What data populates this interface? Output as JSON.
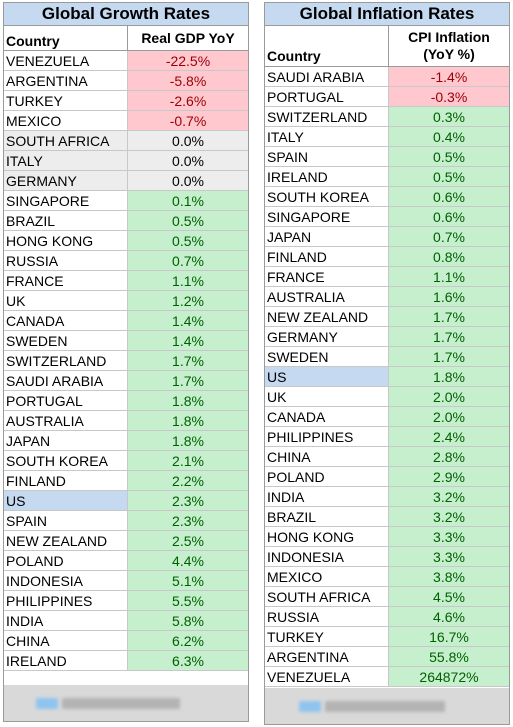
{
  "growth": {
    "title": "Global Growth Rates",
    "col_country": "Country",
    "col_value": "Real GDP YoY",
    "rows": [
      {
        "country": "VENEZUELA",
        "value": "-22.5%",
        "status": "neg"
      },
      {
        "country": "ARGENTINA",
        "value": "-5.8%",
        "status": "neg"
      },
      {
        "country": "TURKEY",
        "value": "-2.6%",
        "status": "neg"
      },
      {
        "country": "MEXICO",
        "value": "-0.7%",
        "status": "neg"
      },
      {
        "country": "SOUTH AFRICA",
        "value": "0.0%",
        "status": "zero"
      },
      {
        "country": "ITALY",
        "value": "0.0%",
        "status": "zero"
      },
      {
        "country": "GERMANY",
        "value": "0.0%",
        "status": "zero"
      },
      {
        "country": "SINGAPORE",
        "value": "0.1%",
        "status": "pos"
      },
      {
        "country": "BRAZIL",
        "value": "0.5%",
        "status": "pos"
      },
      {
        "country": "HONG KONG",
        "value": "0.5%",
        "status": "pos"
      },
      {
        "country": "RUSSIA",
        "value": "0.7%",
        "status": "pos"
      },
      {
        "country": "FRANCE",
        "value": "1.1%",
        "status": "pos"
      },
      {
        "country": "UK",
        "value": "1.2%",
        "status": "pos"
      },
      {
        "country": "CANADA",
        "value": "1.4%",
        "status": "pos"
      },
      {
        "country": "SWEDEN",
        "value": "1.4%",
        "status": "pos"
      },
      {
        "country": "SWITZERLAND",
        "value": "1.7%",
        "status": "pos"
      },
      {
        "country": "SAUDI ARABIA",
        "value": "1.7%",
        "status": "pos"
      },
      {
        "country": "PORTUGAL",
        "value": "1.8%",
        "status": "pos"
      },
      {
        "country": "AUSTRALIA",
        "value": "1.8%",
        "status": "pos"
      },
      {
        "country": "JAPAN",
        "value": "1.8%",
        "status": "pos"
      },
      {
        "country": "SOUTH KOREA",
        "value": "2.1%",
        "status": "pos"
      },
      {
        "country": "FINLAND",
        "value": "2.2%",
        "status": "pos"
      },
      {
        "country": "US",
        "value": "2.3%",
        "status": "pos us"
      },
      {
        "country": "SPAIN",
        "value": "2.3%",
        "status": "pos"
      },
      {
        "country": "NEW ZEALAND",
        "value": "2.5%",
        "status": "pos"
      },
      {
        "country": "POLAND",
        "value": "4.4%",
        "status": "pos"
      },
      {
        "country": "INDONESIA",
        "value": "5.1%",
        "status": "pos"
      },
      {
        "country": "PHILIPPINES",
        "value": "5.5%",
        "status": "pos"
      },
      {
        "country": "INDIA",
        "value": "5.8%",
        "status": "pos"
      },
      {
        "country": "CHINA",
        "value": "6.2%",
        "status": "pos"
      },
      {
        "country": "IRELAND",
        "value": "6.3%",
        "status": "pos"
      }
    ]
  },
  "inflation": {
    "title": "Global Inflation Rates",
    "col_country": "Country",
    "col_value_line1": "CPI Inflation",
    "col_value_line2": "(YoY %)",
    "rows": [
      {
        "country": "SAUDI ARABIA",
        "value": "-1.4%",
        "status": "neg"
      },
      {
        "country": "PORTUGAL",
        "value": "-0.3%",
        "status": "neg"
      },
      {
        "country": "SWITZERLAND",
        "value": "0.3%",
        "status": "pos"
      },
      {
        "country": "ITALY",
        "value": "0.4%",
        "status": "pos"
      },
      {
        "country": "SPAIN",
        "value": "0.5%",
        "status": "pos"
      },
      {
        "country": "IRELAND",
        "value": "0.5%",
        "status": "pos"
      },
      {
        "country": "SOUTH KOREA",
        "value": "0.6%",
        "status": "pos"
      },
      {
        "country": "SINGAPORE",
        "value": "0.6%",
        "status": "pos"
      },
      {
        "country": "JAPAN",
        "value": "0.7%",
        "status": "pos"
      },
      {
        "country": "FINLAND",
        "value": "0.8%",
        "status": "pos"
      },
      {
        "country": "FRANCE",
        "value": "1.1%",
        "status": "pos"
      },
      {
        "country": "AUSTRALIA",
        "value": "1.6%",
        "status": "pos"
      },
      {
        "country": "NEW ZEALAND",
        "value": "1.7%",
        "status": "pos"
      },
      {
        "country": "GERMANY",
        "value": "1.7%",
        "status": "pos"
      },
      {
        "country": "SWEDEN",
        "value": "1.7%",
        "status": "pos"
      },
      {
        "country": "US",
        "value": "1.8%",
        "status": "pos us"
      },
      {
        "country": "UK",
        "value": "2.0%",
        "status": "pos"
      },
      {
        "country": "CANADA",
        "value": "2.0%",
        "status": "pos"
      },
      {
        "country": "PHILIPPINES",
        "value": "2.4%",
        "status": "pos"
      },
      {
        "country": "CHINA",
        "value": "2.8%",
        "status": "pos"
      },
      {
        "country": "POLAND",
        "value": "2.9%",
        "status": "pos"
      },
      {
        "country": "INDIA",
        "value": "3.2%",
        "status": "pos"
      },
      {
        "country": "BRAZIL",
        "value": "3.2%",
        "status": "pos"
      },
      {
        "country": "HONG KONG",
        "value": "3.3%",
        "status": "pos"
      },
      {
        "country": "INDONESIA",
        "value": "3.3%",
        "status": "pos"
      },
      {
        "country": "MEXICO",
        "value": "3.8%",
        "status": "pos"
      },
      {
        "country": "SOUTH AFRICA",
        "value": "4.5%",
        "status": "pos"
      },
      {
        "country": "RUSSIA",
        "value": "4.6%",
        "status": "pos"
      },
      {
        "country": "TURKEY",
        "value": "16.7%",
        "status": "pos"
      },
      {
        "country": "ARGENTINA",
        "value": "55.8%",
        "status": "pos"
      },
      {
        "country": "VENEZUELA",
        "value": "264872%",
        "status": "pos"
      }
    ]
  },
  "colors": {
    "header_blue": "#c5d9f1",
    "negative_fill": "#ffc7ce",
    "negative_text": "#9c0006",
    "positive_fill": "#c6efce",
    "positive_text": "#006100",
    "zero_fill": "#ededed"
  }
}
